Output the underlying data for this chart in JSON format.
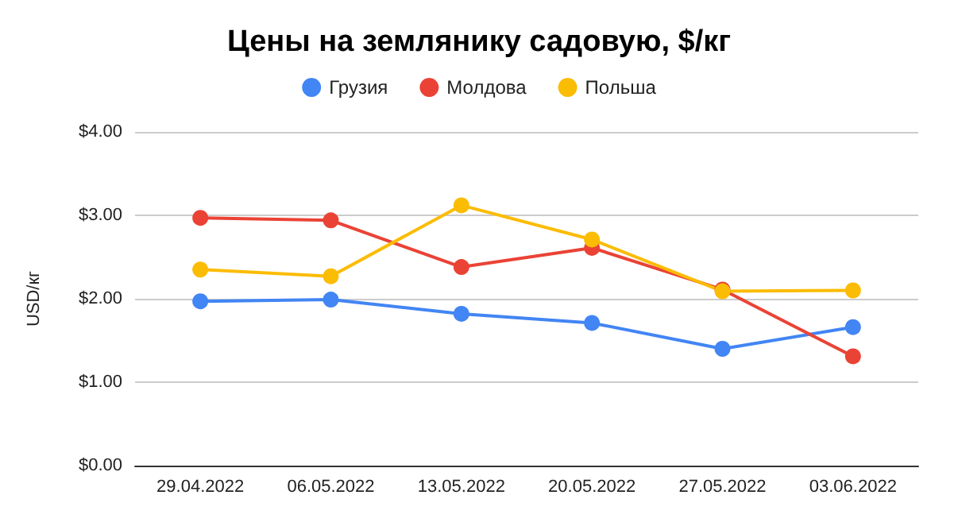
{
  "chart_data": {
    "type": "line",
    "title": "Цены на землянику садовую, $/кг",
    "ylabel": "USD/кг",
    "categories": [
      "29.04.2022",
      "06.05.2022",
      "13.05.2022",
      "20.05.2022",
      "27.05.2022",
      "03.06.2022"
    ],
    "series": [
      {
        "name": "Грузия",
        "color": "#4285f4",
        "values": [
          1.97,
          1.99,
          1.82,
          1.71,
          1.4,
          1.66
        ]
      },
      {
        "name": "Молдова",
        "color": "#ea4335",
        "values": [
          2.97,
          2.94,
          2.38,
          2.61,
          2.11,
          1.31
        ]
      },
      {
        "name": "Польша",
        "color": "#fbbc04",
        "values": [
          2.35,
          2.27,
          3.12,
          2.71,
          2.09,
          2.1
        ]
      }
    ],
    "ylim": [
      0,
      4
    ],
    "yticks": [
      {
        "value": 0,
        "label": "$0.00"
      },
      {
        "value": 1,
        "label": "$1.00"
      },
      {
        "value": 2,
        "label": "$2.00"
      },
      {
        "value": 3,
        "label": "$3.00"
      },
      {
        "value": 4,
        "label": "$4.00"
      }
    ],
    "grid": "y",
    "legend": "top",
    "marker": "circle",
    "line_style": "solid"
  }
}
